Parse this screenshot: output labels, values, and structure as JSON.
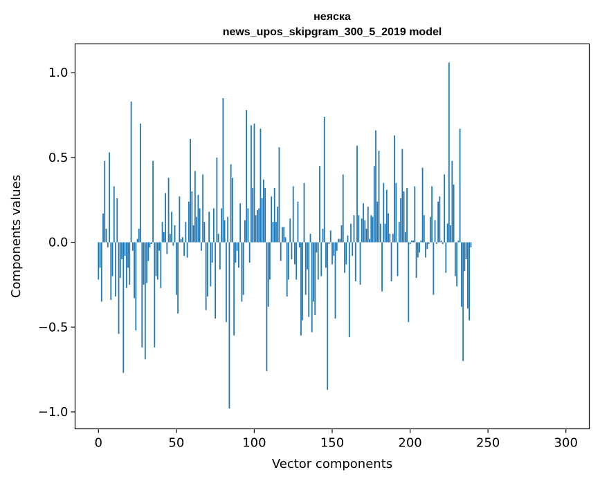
{
  "chart_data": {
    "type": "bar",
    "title": "нeяcкa",
    "subtitle": "news_upos_skipgram_300_5_2019 model",
    "xlabel": "Vector components",
    "ylabel": "Components values",
    "xlim": [
      -15,
      315
    ],
    "ylim": [
      -1.1,
      1.17
    ],
    "xticks": [
      0,
      50,
      100,
      150,
      200,
      250,
      300
    ],
    "yticks": [
      -1.0,
      -0.5,
      0.0,
      0.5,
      1.0
    ],
    "ytick_labels": [
      "−1.0",
      "−0.5",
      "0.0",
      "0.5",
      "1.0"
    ],
    "bar_color": "#1f77b4",
    "values": [
      -0.22,
      -0.15,
      -0.35,
      0.17,
      0.48,
      0.08,
      -0.03,
      0.53,
      -0.34,
      -0.2,
      0.33,
      -0.32,
      0.26,
      -0.54,
      -0.21,
      -0.1,
      -0.77,
      -0.08,
      -0.27,
      -0.15,
      -0.25,
      0.83,
      -0.05,
      -0.33,
      -0.52,
      0.02,
      0.08,
      0.7,
      -0.62,
      -0.25,
      -0.69,
      -0.24,
      -0.11,
      -0.03,
      -0.01,
      0.48,
      -0.62,
      -0.2,
      -0.22,
      -0.05,
      -0.27,
      0.12,
      0.06,
      0.29,
      -0.07,
      0.38,
      0.05,
      0.18,
      -0.02,
      0.1,
      -0.31,
      -0.42,
      0.27,
      0.02,
      0.03,
      -0.08,
      0.12,
      -0.09,
      0.24,
      0.61,
      0.3,
      0.1,
      0.42,
      0.15,
      0.28,
      0.2,
      -0.05,
      0.4,
      0.12,
      -0.4,
      -0.32,
      0.18,
      -0.26,
      -0.12,
      0.2,
      -0.45,
      0.5,
      0.05,
      -0.16,
      0.2,
      0.85,
      0.13,
      -0.47,
      0.15,
      -0.98,
      0.46,
      0.38,
      -0.55,
      -0.12,
      -0.05,
      -0.15,
      0.23,
      -0.35,
      -0.31,
      0.13,
      0.78,
      0.2,
      -0.12,
      0.69,
      0.32,
      0.7,
      0.16,
      0.19,
      0.2,
      0.67,
      0.26,
      0.37,
      0.32,
      -0.76,
      -0.38,
      -0.22,
      0.27,
      0.12,
      0.32,
      0.12,
      0.21,
      0.56,
      -0.11,
      0.09,
      0.09,
      0.03,
      -0.32,
      -0.22,
      0.14,
      -0.1,
      0.33,
      -0.13,
      -0.22,
      0.24,
      -0.03,
      -0.55,
      -0.46,
      0.35,
      -0.31,
      -0.16,
      -0.44,
      0.05,
      -0.53,
      -0.35,
      -0.43,
      -0.06,
      -0.22,
      0.45,
      -0.2,
      0.08,
      0.74,
      -0.15,
      -0.87,
      -0.01,
      0.07,
      -0.13,
      -0.08,
      -0.45,
      -0.05,
      0.02,
      0.02,
      0.1,
      0.4,
      -0.18,
      -0.13,
      0.04,
      -0.56,
      0.11,
      -0.08,
      0.16,
      -0.23,
      0.57,
      0.16,
      -0.25,
      0.14,
      0.23,
      0.13,
      0.08,
      0.21,
      0.02,
      0.16,
      0.15,
      0.45,
      0.66,
      0.24,
      0.54,
      0.11,
      -0.29,
      0.35,
      0.11,
      0.31,
      0.17,
      0.05,
      -0.23,
      0.05,
      0.63,
      0.35,
      -0.2,
      0.12,
      0.26,
      0.55,
      0.3,
      0.06,
      0.32,
      -0.47,
      -0.01,
      0.01,
      0.01,
      0.33,
      -0.21,
      -0.09,
      -0.06,
      0.01,
      0.44,
      0.16,
      -0.09,
      -0.04,
      -0.01,
      0.15,
      0.33,
      -0.31,
      0.13,
      -0.01,
      0.24,
      0.27,
      0.01,
      -0.01,
      0.4,
      -0.18,
      0.11,
      1.06,
      0.1,
      0.48,
      0.34,
      -0.2,
      -0.26,
      0.01,
      0.67,
      -0.38,
      -0.7,
      -0.17,
      -0.1,
      -0.39,
      -0.46,
      -0.03
    ]
  }
}
